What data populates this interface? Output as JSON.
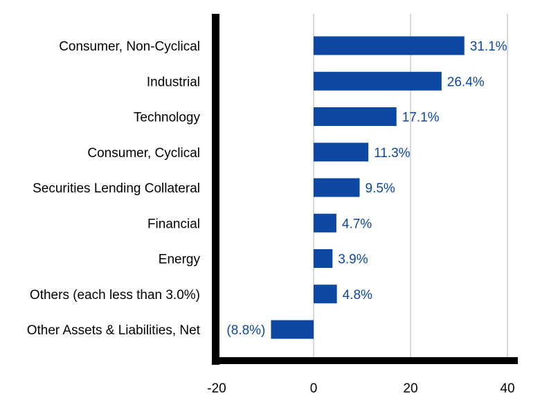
{
  "chart_data": {
    "type": "bar",
    "orientation": "horizontal",
    "categories": [
      "Consumer, Non-Cyclical",
      "Industrial",
      "Technology",
      "Consumer, Cyclical",
      "Securities Lending Collateral",
      "Financial",
      "Energy",
      "Others (each less than 3.0%)",
      "Other Assets & Liabilities, Net"
    ],
    "values": [
      31.1,
      26.4,
      17.1,
      11.3,
      9.5,
      4.7,
      3.9,
      4.8,
      -8.8
    ],
    "data_labels": [
      "31.1%",
      "26.4%",
      "17.1%",
      "11.3%",
      "9.5%",
      "4.7%",
      "3.9%",
      "4.8%",
      "(8.8%)"
    ],
    "xlim": [
      -20,
      40
    ],
    "xticks": [
      -20,
      0,
      20,
      40
    ],
    "tick_labels": [
      "-20",
      "0",
      "20",
      "40"
    ],
    "grid": true,
    "bar_color": "#0c47a1",
    "grid_color": "#cccccc",
    "axis_color": "#000000"
  }
}
